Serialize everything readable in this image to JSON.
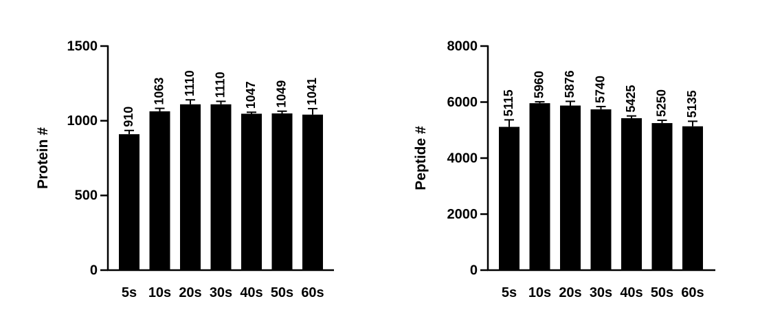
{
  "chart_data": [
    {
      "type": "bar",
      "y_label": "Protein #",
      "categories": [
        "5s",
        "10s",
        "20s",
        "30s",
        "40s",
        "50s",
        "60s"
      ],
      "values": [
        910,
        1063,
        1110,
        1110,
        1047,
        1049,
        1041
      ],
      "errors": [
        25,
        20,
        30,
        20,
        10,
        15,
        40
      ],
      "color": "#000000",
      "ylim": [
        0,
        1500
      ],
      "yticks": [
        0,
        500,
        1000,
        1500
      ]
    },
    {
      "type": "bar",
      "y_label": "Peptide #",
      "categories": [
        "5s",
        "10s",
        "20s",
        "30s",
        "40s",
        "50s",
        "60s"
      ],
      "values": [
        5115,
        5960,
        5876,
        5740,
        5425,
        5250,
        5135
      ],
      "errors": [
        250,
        50,
        150,
        100,
        80,
        100,
        180
      ],
      "color": "#000000",
      "ylim": [
        0,
        8000
      ],
      "yticks": [
        0,
        2000,
        4000,
        6000,
        8000
      ]
    }
  ]
}
